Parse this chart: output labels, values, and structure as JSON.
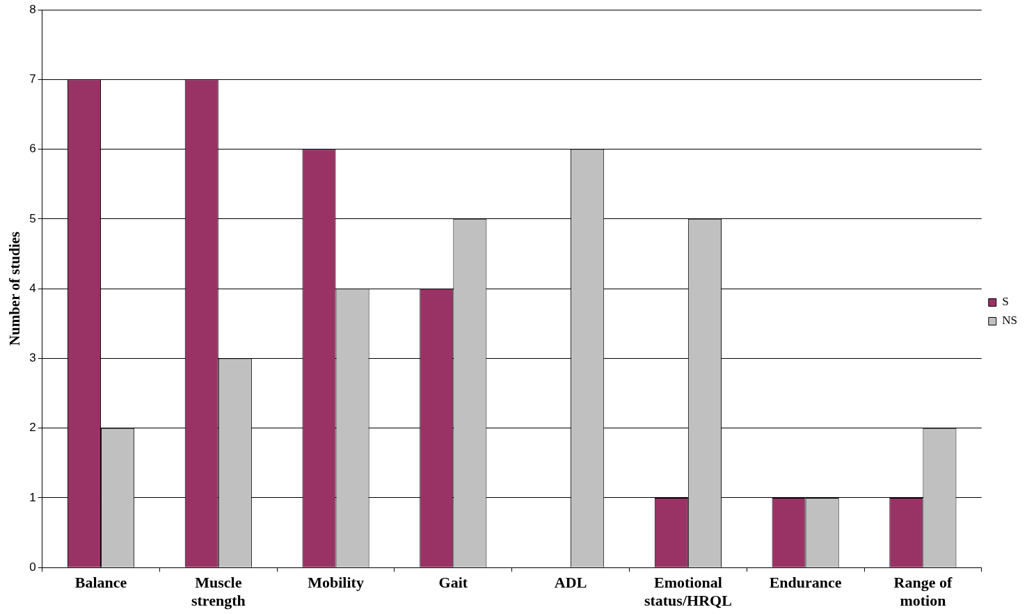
{
  "chart_data": {
    "type": "bar",
    "ylabel": "Number of studies",
    "categories": [
      "Balance",
      "Muscle strength",
      "Mobility",
      "Gait",
      "ADL",
      "Emotional status/HRQL",
      "Endurance",
      "Range of motion"
    ],
    "series": [
      {
        "name": "S",
        "color": "#993366",
        "values": [
          7,
          7,
          6,
          4,
          0,
          1,
          1,
          1
        ]
      },
      {
        "name": "NS",
        "color": "#c0c0c0",
        "values": [
          2,
          3,
          4,
          5,
          6,
          5,
          1,
          2
        ]
      }
    ],
    "ylim": [
      0,
      8
    ],
    "yticks": [
      0,
      1,
      2,
      3,
      4,
      5,
      6,
      7,
      8
    ],
    "grid": "y",
    "legend": "right"
  }
}
